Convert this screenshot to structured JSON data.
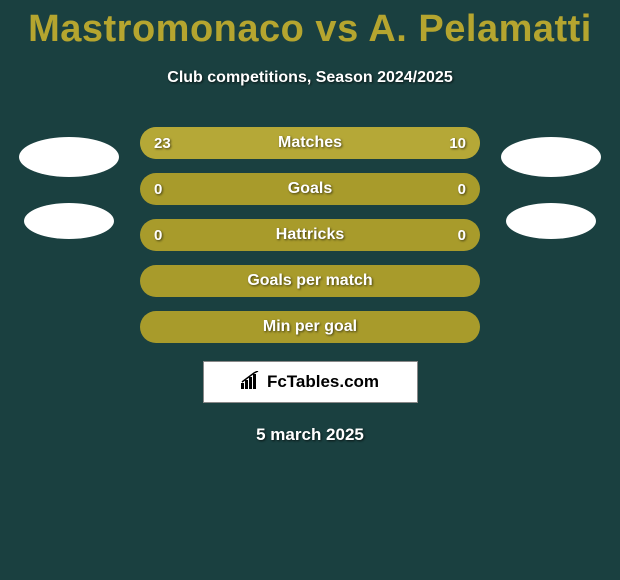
{
  "header": {
    "title": "Mastromonaco vs A. Pelamatti",
    "subtitle": "Club competitions, Season 2024/2025"
  },
  "stats": [
    {
      "label": "Matches",
      "left_value": "23",
      "right_value": "10",
      "left_pct": 69.7,
      "right_pct": 30.3
    },
    {
      "label": "Goals",
      "left_value": "0",
      "right_value": "0",
      "left_pct": 0,
      "right_pct": 0
    },
    {
      "label": "Hattricks",
      "left_value": "0",
      "right_value": "0",
      "left_pct": 0,
      "right_pct": 0
    },
    {
      "label": "Goals per match",
      "left_value": "",
      "right_value": "",
      "left_pct": 0,
      "right_pct": 0
    },
    {
      "label": "Min per goal",
      "left_value": "",
      "right_value": "",
      "left_pct": 0,
      "right_pct": 0
    }
  ],
  "branding": {
    "text": "FcTables.com"
  },
  "date": "5 march 2025",
  "colors": {
    "background": "#1a4040",
    "accent": "#b5a52f",
    "bar_base": "#a89b2b",
    "bar_fill": "#b5a837",
    "text_light": "#ffffff"
  }
}
